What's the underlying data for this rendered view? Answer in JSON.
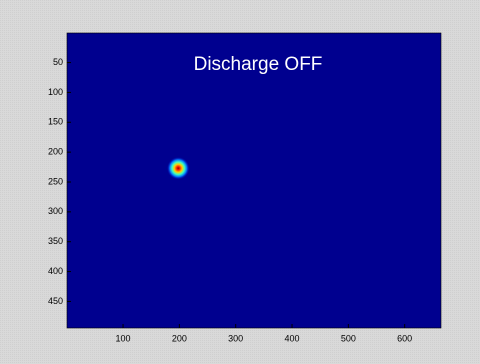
{
  "chart_data": {
    "type": "image",
    "title": "Discharge OFF",
    "xlim": [
      0.5,
      664.5
    ],
    "ylim": [
      0.5,
      494.5
    ],
    "y_reversed": true,
    "xticks": [
      100,
      200,
      300,
      400,
      500,
      600
    ],
    "yticks": [
      50,
      100,
      150,
      200,
      250,
      300,
      350,
      400,
      450
    ],
    "background_color": "#00008f",
    "spot": {
      "x": 198,
      "y": 227,
      "radius": 20
    }
  }
}
